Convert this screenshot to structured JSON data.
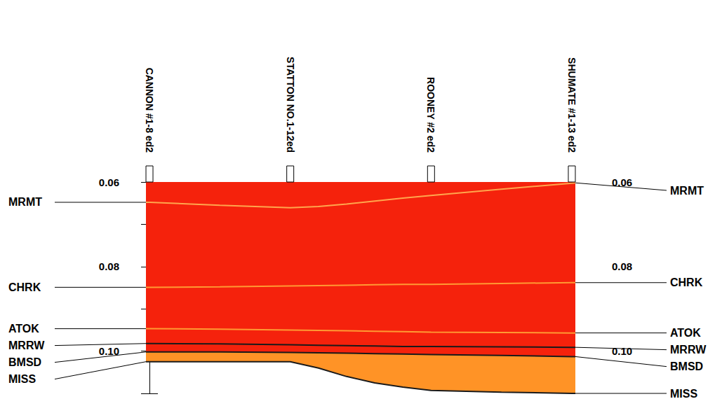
{
  "chart_data": {
    "type": "line",
    "wells": [
      {
        "name": "CANNON #1-8 ed2",
        "x": 0
      },
      {
        "name": "STATTON NO.1-12ed",
        "x": 10
      },
      {
        "name": "ROONEY #2 ed2",
        "x": 20
      },
      {
        "name": "SHUMATE #1-13 ed2",
        "x": 30
      }
    ],
    "x": [
      -0.25,
      0,
      5,
      10,
      12,
      14,
      16,
      18,
      20,
      25,
      30,
      30.25
    ],
    "series": [
      {
        "name": "MRMT",
        "color": "#ffa64d",
        "values": [
          0.0648,
          0.0648,
          0.0655,
          0.0661,
          0.0658,
          0.0652,
          0.0645,
          0.0638,
          0.0632,
          0.0617,
          0.0603,
          0.0602
        ]
      },
      {
        "name": "CHRK",
        "color": "#ff9a33",
        "values": [
          0.0849,
          0.0849,
          0.0848,
          0.0846,
          0.0845,
          0.0844,
          0.0843,
          0.0842,
          0.0842,
          0.084,
          0.0838,
          0.0838
        ]
      },
      {
        "name": "ATOK",
        "color": "#ff9a33",
        "values": [
          0.0947,
          0.0947,
          0.0948,
          0.095,
          0.0951,
          0.0952,
          0.0953,
          0.0954,
          0.0955,
          0.0956,
          0.0957,
          0.0957
        ]
      },
      {
        "name": "MRRW",
        "color": "#1a1a1a",
        "values": [
          0.0982,
          0.0982,
          0.0983,
          0.0985,
          0.0986,
          0.0987,
          0.0988,
          0.0989,
          0.0989,
          0.099,
          0.0991,
          0.0991
        ]
      },
      {
        "name": "BMSD",
        "color": "#1a1a1a",
        "values": [
          0.1002,
          0.1002,
          0.1002,
          0.1003,
          0.1004,
          0.1005,
          0.1006,
          0.1007,
          0.1008,
          0.101,
          0.1013,
          0.1013
        ]
      },
      {
        "name": "MISS",
        "color": "#1a1a1a",
        "values": [
          0.1025,
          0.1025,
          0.1025,
          0.1025,
          0.104,
          0.106,
          0.1075,
          0.1085,
          0.1093,
          0.1097,
          0.11,
          0.11
        ]
      }
    ],
    "xlim": [
      -0.25,
      30.25
    ],
    "ylim": [
      0.06,
      0.11
    ],
    "yticks": [
      0.06,
      0.08,
      {
        "value": 0.1,
        "label": "0.10"
      }
    ],
    "tick_labels": "y"
  }
}
